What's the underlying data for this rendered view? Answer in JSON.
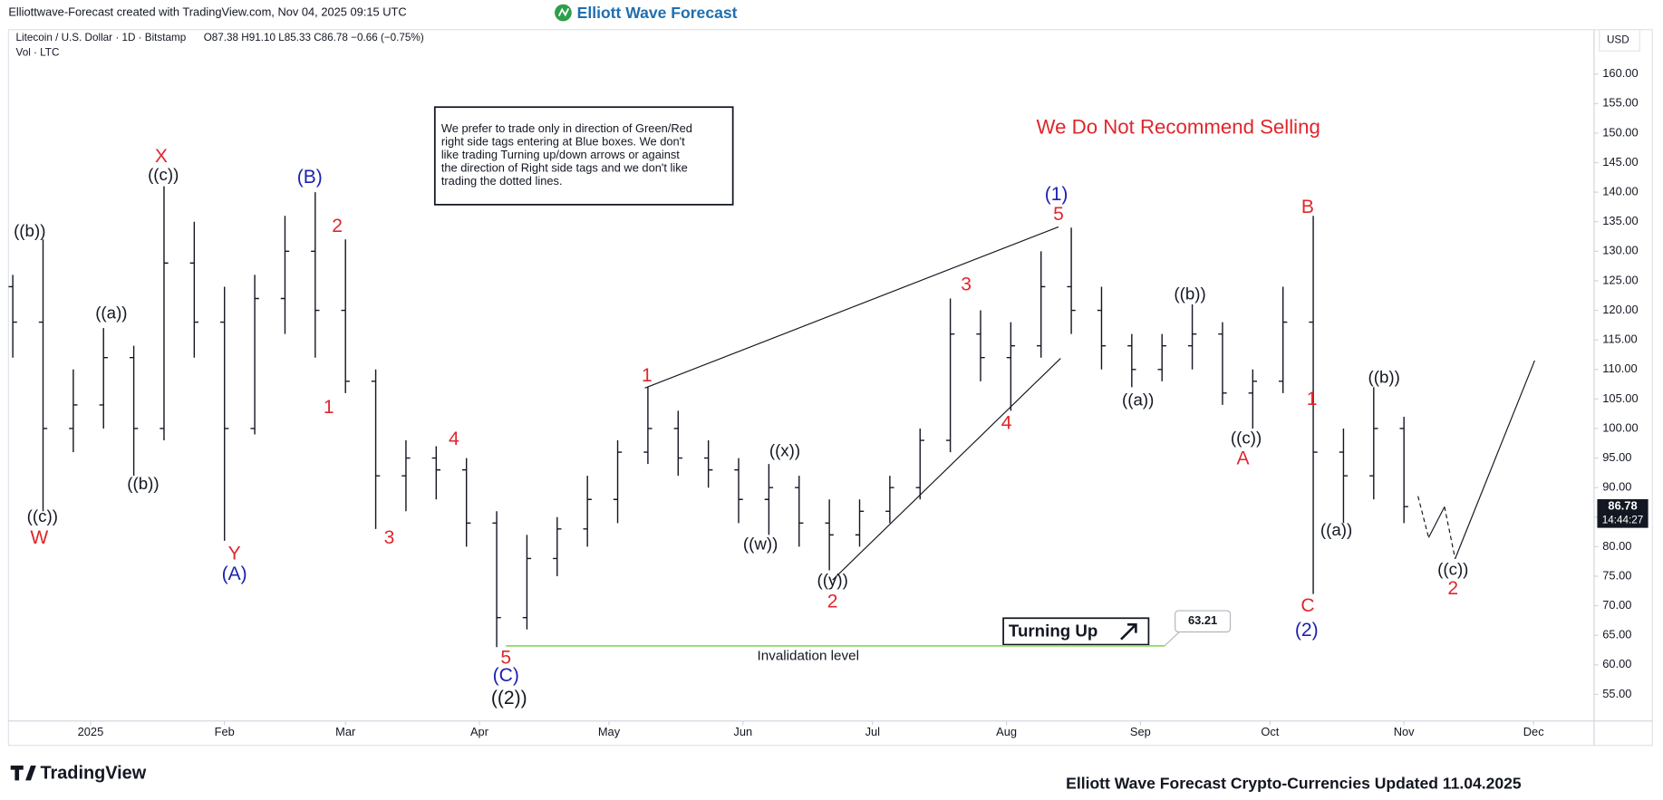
{
  "header": {
    "credit": "Elliottwave-Forecast created with TradingView.com, Nov 04, 2025 09:15 UTC",
    "logo": "Elliott Wave Forecast"
  },
  "chart_data": {
    "type": "ohlc",
    "symbol": "Litecoin / U.S. Dollar · 1D · Bitstamp",
    "ohlc_text": "O87.38 H91.10 L85.33 C86.78 −0.66 (−0.75%)",
    "volume_label": "Vol · LTC",
    "currency": "USD",
    "color": "#131722",
    "x": [
      -18,
      -11,
      -4,
      3,
      10,
      17,
      24,
      31,
      38,
      45,
      52,
      59,
      66,
      73,
      80,
      87,
      94,
      101,
      108,
      115,
      122,
      129,
      136,
      143,
      150,
      157,
      164,
      171,
      178,
      185,
      192,
      199,
      206,
      213,
      220,
      227,
      234,
      241,
      248,
      255,
      262,
      269,
      276,
      283,
      290,
      297,
      304
    ],
    "open": [
      124,
      118,
      100,
      104,
      112,
      100,
      128,
      118,
      100,
      122,
      130,
      120,
      108,
      92,
      95,
      93,
      84,
      68,
      78,
      83,
      88,
      96,
      100,
      95,
      93,
      88,
      90,
      84,
      82,
      86,
      90,
      98,
      116,
      112,
      114,
      124,
      120,
      114,
      110,
      114,
      116,
      106,
      108,
      118,
      96,
      92,
      100
    ],
    "high": [
      126,
      132,
      110,
      117,
      114,
      141,
      135,
      124,
      126,
      136,
      140,
      132,
      110,
      98,
      97,
      95,
      86,
      82,
      85,
      92,
      98,
      107,
      103,
      98,
      95,
      94,
      92,
      88,
      88,
      92,
      100,
      122,
      120,
      118,
      130,
      134,
      124,
      116,
      116,
      121,
      118,
      110,
      124,
      136,
      100,
      107,
      102
    ],
    "low": [
      112,
      86,
      96,
      100,
      92,
      98,
      112,
      81,
      99,
      116,
      112,
      106,
      83,
      86,
      88,
      80,
      63,
      66,
      75,
      80,
      84,
      94,
      92,
      90,
      84,
      82,
      80,
      76,
      80,
      84,
      88,
      96,
      108,
      103,
      112,
      116,
      110,
      107,
      108,
      110,
      104,
      100,
      106,
      72,
      84,
      88,
      84
    ],
    "close": [
      118,
      100,
      104,
      112,
      100,
      128,
      118,
      100,
      122,
      130,
      120,
      108,
      92,
      95,
      93,
      84,
      68,
      78,
      83,
      88,
      96,
      100,
      95,
      93,
      88,
      90,
      84,
      82,
      86,
      90,
      98,
      116,
      112,
      114,
      124,
      120,
      114,
      110,
      114,
      116,
      106,
      108,
      118,
      96,
      92,
      100,
      86.78
    ],
    "xlim": [
      -19,
      348
    ],
    "xticks": [
      {
        "value": 0,
        "label": "2025"
      },
      {
        "value": 31,
        "label": "Feb"
      },
      {
        "value": 59,
        "label": "Mar"
      },
      {
        "value": 90,
        "label": "Apr"
      },
      {
        "value": 120,
        "label": "May"
      },
      {
        "value": 151,
        "label": "Jun"
      },
      {
        "value": 181,
        "label": "Jul"
      },
      {
        "value": 212,
        "label": "Aug"
      },
      {
        "value": 243,
        "label": "Sep"
      },
      {
        "value": 273,
        "label": "Oct"
      },
      {
        "value": 304,
        "label": "Nov"
      },
      {
        "value": 334,
        "label": "Dec"
      }
    ],
    "ylim": [
      50.5,
      167.5
    ],
    "yticks": [
      {
        "value": 55,
        "label": "55.00"
      },
      {
        "value": 60,
        "label": "60.00"
      },
      {
        "value": 65,
        "label": "65.00"
      },
      {
        "value": 70,
        "label": "70.00"
      },
      {
        "value": 75,
        "label": "75.00"
      },
      {
        "value": 80,
        "label": "80.00"
      },
      {
        "value": 85,
        "label": "85.00"
      },
      {
        "value": 90,
        "label": "90.00"
      },
      {
        "value": 95,
        "label": "95.00"
      },
      {
        "value": 100,
        "label": "100.00"
      },
      {
        "value": 105,
        "label": "105.00"
      },
      {
        "value": 110,
        "label": "110.00"
      },
      {
        "value": 115,
        "label": "115.00"
      },
      {
        "value": 120,
        "label": "120.00"
      },
      {
        "value": 125,
        "label": "125.00"
      },
      {
        "value": 130,
        "label": "130.00"
      },
      {
        "value": 135,
        "label": "135.00"
      },
      {
        "value": 140,
        "label": "140.00"
      },
      {
        "value": 145,
        "label": "145.00"
      },
      {
        "value": 150,
        "label": "150.00"
      },
      {
        "value": 155,
        "label": "155.00"
      },
      {
        "value": 160,
        "label": "160.00"
      }
    ],
    "last_price": 86.78,
    "countdown": "14:44:27",
    "invalidation": {
      "value": 63.21,
      "label": "Invalidation level",
      "color": "#8bdc5a"
    },
    "turning": "Turning Up",
    "warning": "We Do Not Recommend Selling",
    "note": [
      "We prefer to trade only in direction of Green/Red",
      "right side tags entering at Blue boxes. We don't",
      "like trading Turning up/down arrows or against",
      "the direction of Right side tags and we don't like",
      "trading the dotted lines."
    ],
    "wave_labels": [
      {
        "text": "((b))",
        "color": "#131722"
      },
      {
        "text": "((c))",
        "color": "#131722"
      },
      {
        "text": "((a))",
        "color": "#131722"
      },
      {
        "text": "((b))",
        "color": "#131722"
      },
      {
        "text": "((c))",
        "color": "#131722"
      },
      {
        "text": "((a))",
        "color": "#131722"
      },
      {
        "text": "((b))",
        "color": "#131722"
      },
      {
        "text": "((c))",
        "color": "#131722"
      },
      {
        "text": "((a))",
        "color": "#131722"
      },
      {
        "text": "((b))",
        "color": "#131722"
      },
      {
        "text": "((c))",
        "color": "#131722"
      },
      {
        "text": "((x))",
        "color": "#131722"
      },
      {
        "text": "((w))",
        "color": "#131722"
      },
      {
        "text": "((y))",
        "color": "#131722"
      },
      {
        "text": "((2))",
        "color": "#131722"
      },
      {
        "text": "W",
        "color": "#e0262b"
      },
      {
        "text": "X",
        "color": "#e0262b"
      },
      {
        "text": "Y",
        "color": "#e0262b"
      },
      {
        "text": "2",
        "color": "#e0262b"
      },
      {
        "text": "1",
        "color": "#e0262b"
      },
      {
        "text": "3",
        "color": "#e0262b"
      },
      {
        "text": "4",
        "color": "#e0262b"
      },
      {
        "text": "5",
        "color": "#e0262b"
      },
      {
        "text": "1",
        "color": "#e0262b"
      },
      {
        "text": "2",
        "color": "#e0262b"
      },
      {
        "text": "3",
        "color": "#e0262b"
      },
      {
        "text": "4",
        "color": "#e0262b"
      },
      {
        "text": "5",
        "color": "#e0262b"
      },
      {
        "text": "A",
        "color": "#e0262b"
      },
      {
        "text": "B",
        "color": "#e0262b"
      },
      {
        "text": "C",
        "color": "#e0262b"
      },
      {
        "text": "1",
        "color": "#e0262b"
      },
      {
        "text": "2",
        "color": "#e0262b"
      },
      {
        "text": "(B)",
        "color": "#1c20b0"
      },
      {
        "text": "(A)",
        "color": "#1c20b0"
      },
      {
        "text": "(C)",
        "color": "#1c20b0"
      },
      {
        "text": "(1)",
        "color": "#1c20b0"
      },
      {
        "text": "(2)",
        "color": "#1c20b0"
      }
    ]
  },
  "footer": {
    "brand": "TradingView",
    "update": "Elliott Wave Forecast Crypto-Currencies Updated 11.04.2025"
  }
}
